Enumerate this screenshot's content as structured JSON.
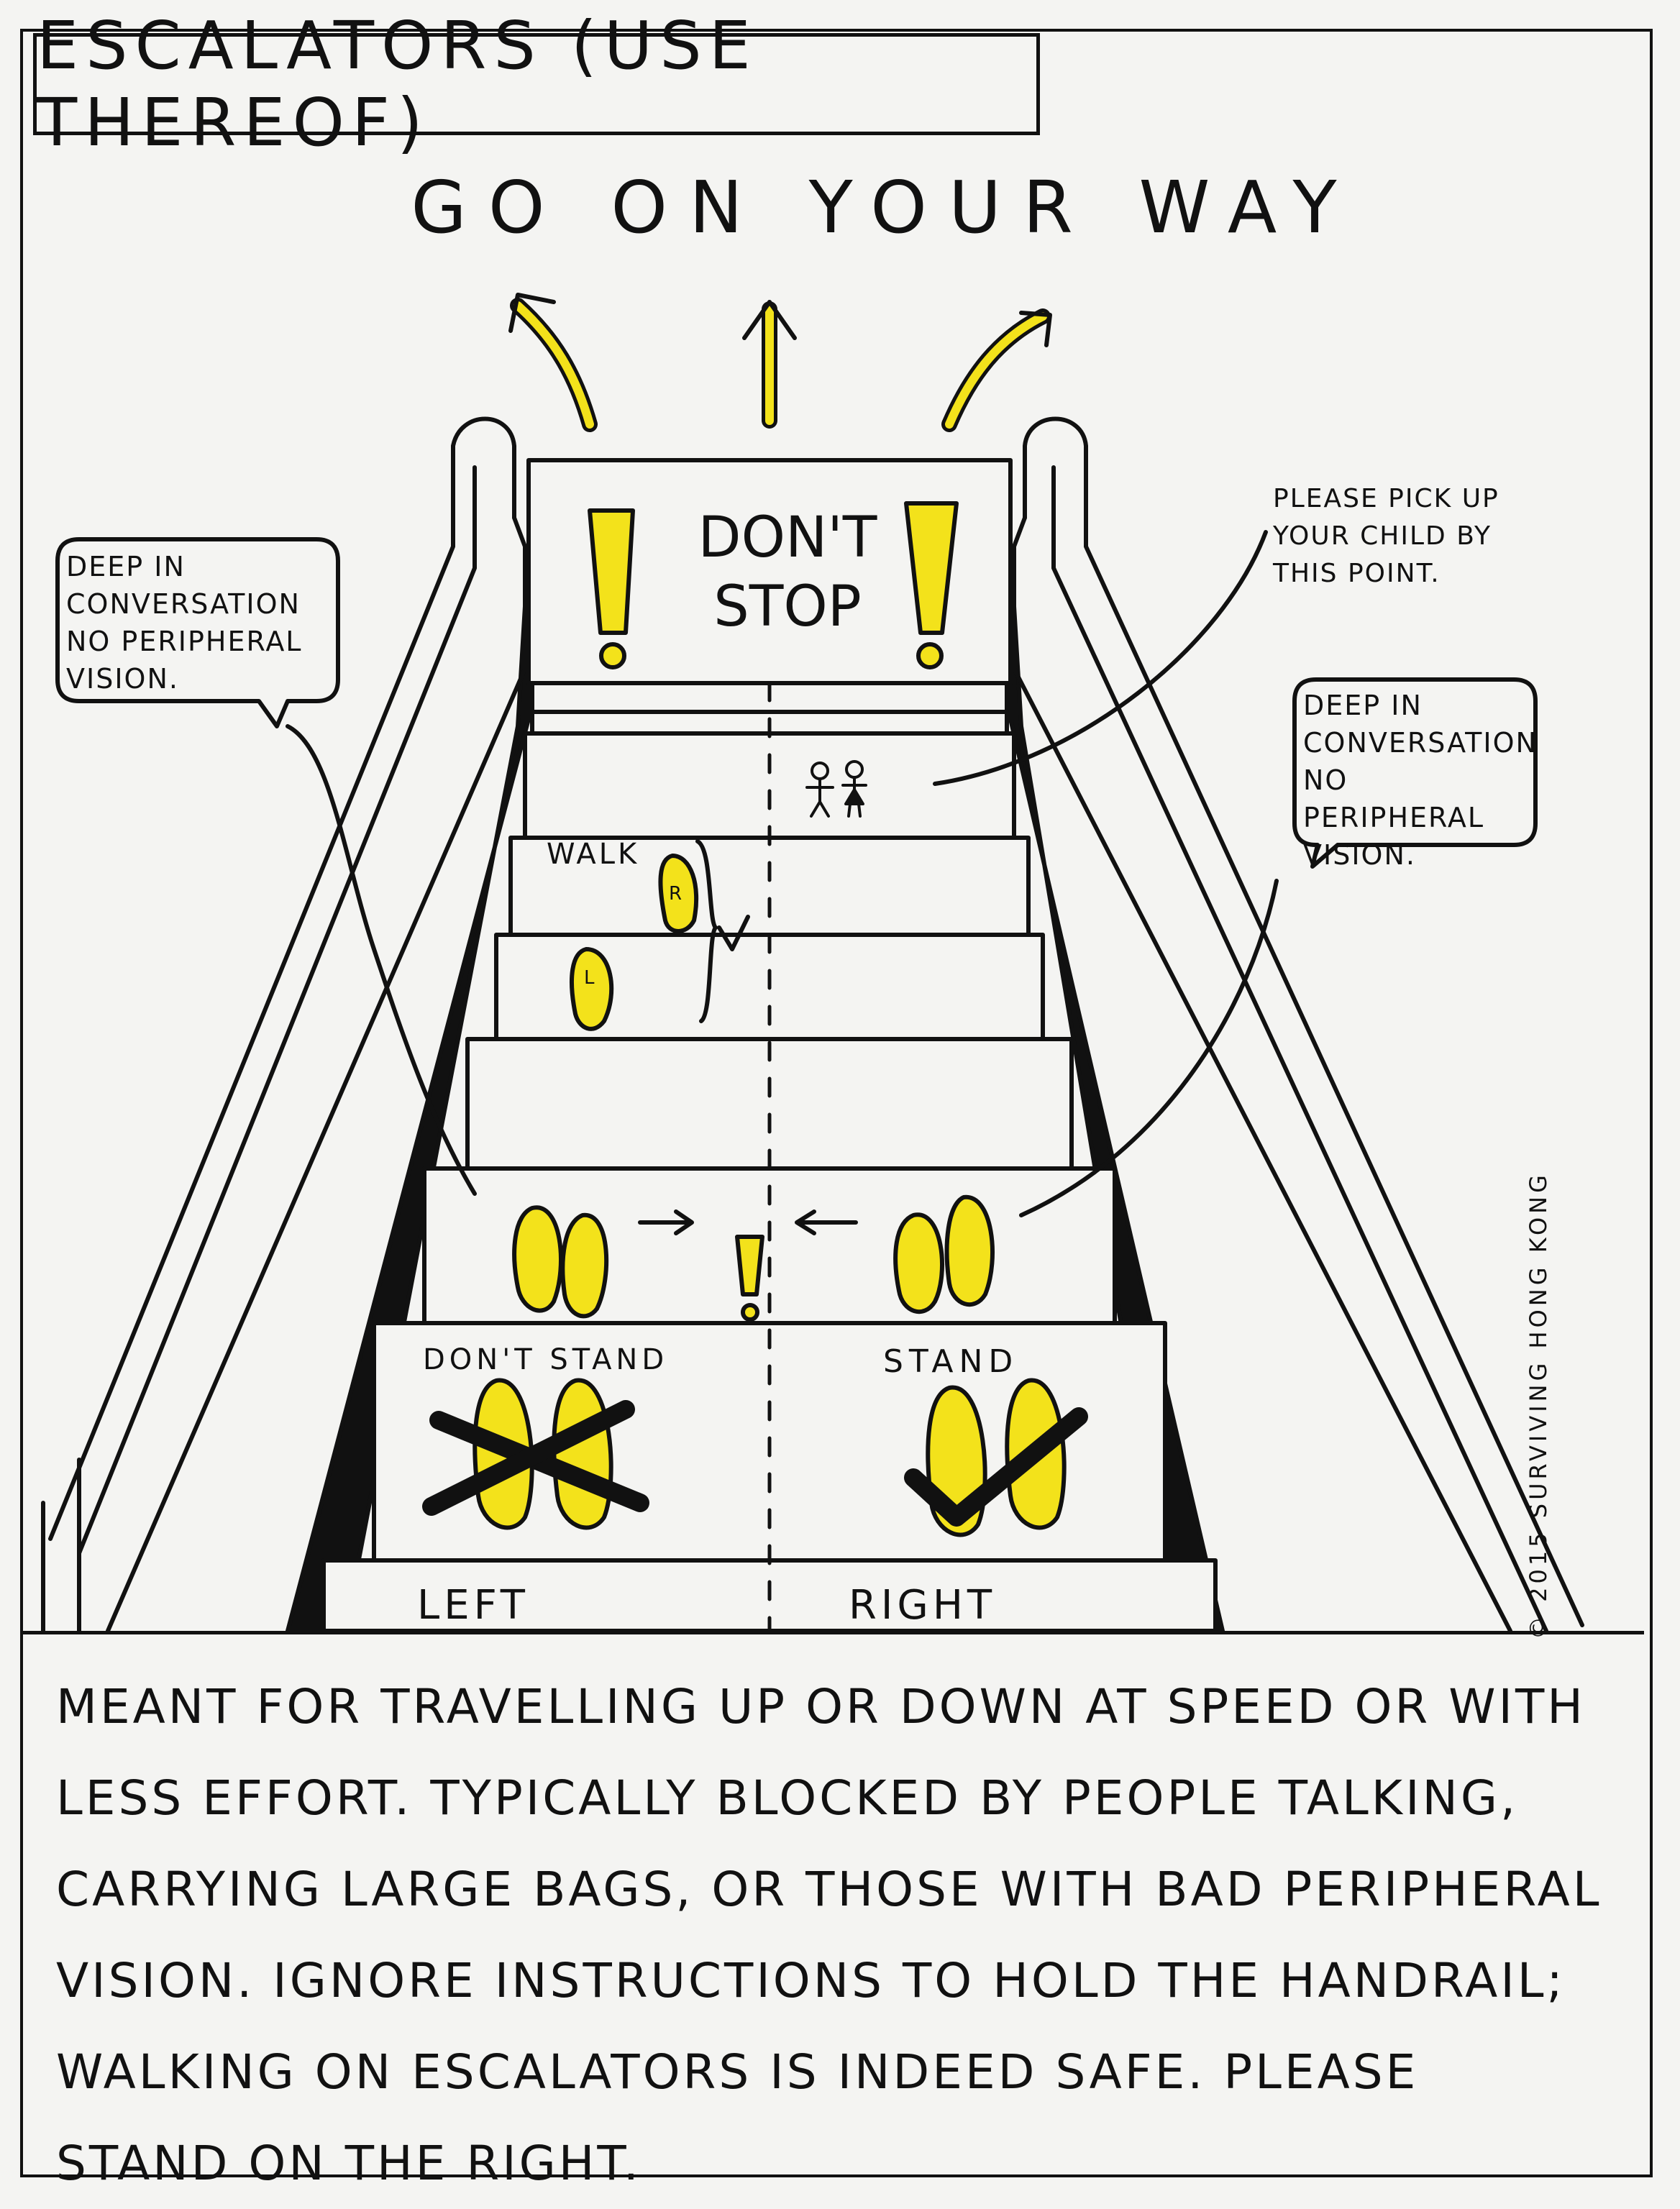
{
  "title": "ESCALATORS (USE THEREOF)",
  "top_caption": "GO ON YOUR WAY",
  "sign_text": "DON'T STOP",
  "bubble_left": "DEEP IN CONVERSATION NO PERIPHERAL VISION.",
  "bubble_right": "DEEP IN CONVERSATION NO PERIPHERAL VISION.",
  "child_note": "PLEASE PICK UP YOUR CHILD BY THIS POINT.",
  "walk_label": "WALK",
  "foot_letter_right": "R",
  "foot_letter_left": "L",
  "dont_stand_label": "DON'T STAND",
  "stand_label": "STAND",
  "left_label": "LEFT",
  "right_label": "RIGHT",
  "copyright": "© 2015 SURVIVING HONG KONG",
  "body_text": "MEANT FOR TRAVELLING UP OR DOWN AT SPEED OR WITH LESS EFFORT. TYPICALLY BLOCKED BY PEOPLE TALKING, CARRYING LARGE BAGS, OR THOSE WITH BAD PERIPHERAL VISION. IGNORE INSTRUCTIONS TO HOLD THE HANDRAIL; WALKING ON ESCALATORS IS INDEED SAFE. PLEASE STAND ON THE RIGHT.",
  "colors": {
    "highlight": "#f3e21b",
    "ink": "#111111",
    "paper": "#f4f4f2"
  }
}
